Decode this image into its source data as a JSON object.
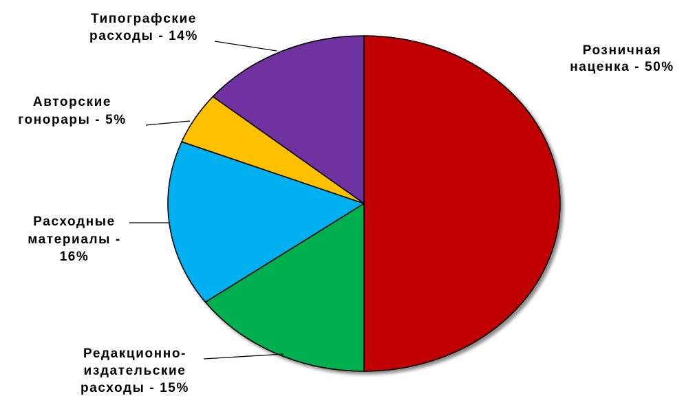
{
  "chart_data": {
    "type": "pie",
    "title": "",
    "start_angle_deg": 0,
    "direction": "clockwise",
    "slices": [
      {
        "label_lines": [
          "Розничная",
          "наценка - 50%"
        ],
        "value": 50,
        "color": "#C00000"
      },
      {
        "label_lines": [
          "Редакционно-",
          "издательские",
          "расходы - 15%"
        ],
        "value": 15,
        "color": "#00B050"
      },
      {
        "label_lines": [
          "Расходные",
          "материалы -",
          "16%"
        ],
        "value": 16,
        "color": "#00B0F0"
      },
      {
        "label_lines": [
          "Авторские",
          "гонорары - 5%"
        ],
        "value": 5,
        "color": "#FFC000"
      },
      {
        "label_lines": [
          "Типографские",
          "расходы - 14%"
        ],
        "value": 14,
        "color": "#7030A0"
      }
    ]
  }
}
